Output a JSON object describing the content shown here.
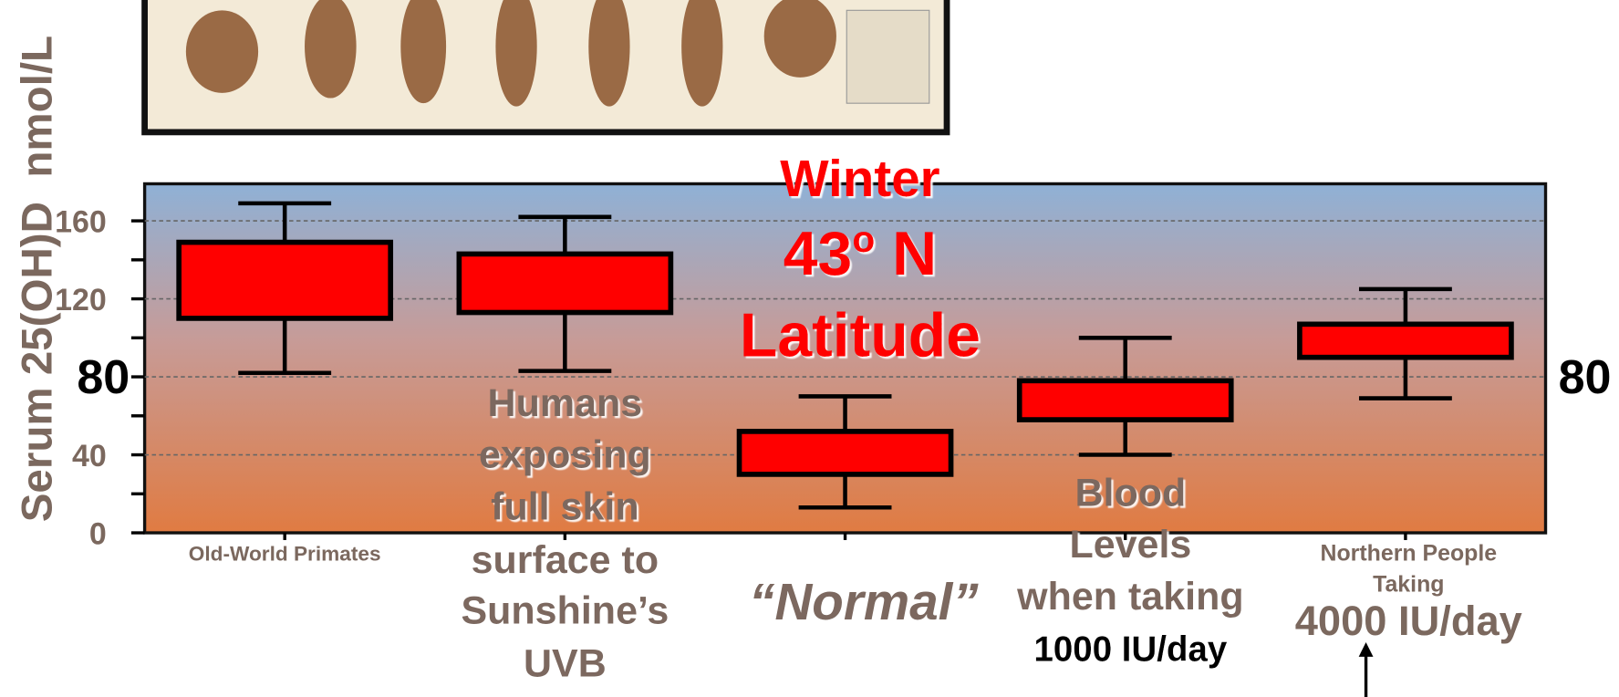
{
  "chart_data": {
    "type": "box",
    "title": {
      "line1": "Winter",
      "line2": "43",
      "line2_sup": "o",
      "line2_end": " N",
      "line3": "Latitude"
    },
    "y_label": "Serum 25(OH)D  nmol/L",
    "categories": [
      [
        "Old-World Primates"
      ],
      [
        "Humans",
        "exposing",
        "full skin",
        "surface to",
        "Sunshine’s",
        "UVB"
      ],
      [
        "“Normal”"
      ],
      [
        "Blood",
        "Levels",
        "when taking",
        "1000 IU/day"
      ],
      [
        "Northern People",
        "Taking",
        "4000 IU/day"
      ]
    ],
    "series": [
      {
        "color": "#ff0000",
        "min": [
          82,
          83,
          13,
          40,
          69
        ],
        "q1": [
          110,
          113,
          30,
          58,
          90
        ],
        "q3": [
          149,
          143,
          52,
          78,
          107
        ],
        "max": [
          169,
          162,
          70,
          100,
          125
        ]
      }
    ],
    "ylim": [
      0,
      179
    ],
    "yticks": [
      0,
      40,
      80,
      120,
      160
    ],
    "grid": true
  }
}
